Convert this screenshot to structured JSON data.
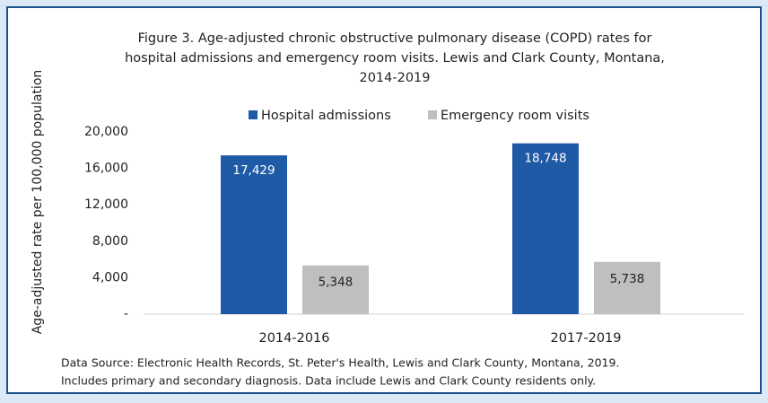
{
  "chart_data": {
    "type": "bar",
    "title": [
      "Figure 3. Age-adjusted chronic obstructive pulmonary disease (COPD) rates for",
      "hospital admissions and emergency room visits. Lewis and Clark County, Montana,",
      "2014-2019"
    ],
    "y_label": "Age-adjusted rate per 100,000 population",
    "categories": [
      "2014-2016",
      "2017-2019"
    ],
    "series": [
      {
        "name": "Hospital admissions",
        "color": "#1f5aa6",
        "values": [
          17429,
          18748
        ],
        "value_labels": [
          "17,429",
          "18,748"
        ]
      },
      {
        "name": "Emergency room visits",
        "color": "#bfbfbf",
        "values": [
          5348,
          5738
        ],
        "value_labels": [
          "5,348",
          "5,738"
        ]
      }
    ],
    "ylim": [
      0,
      20000
    ],
    "yticks": [
      {
        "value": 0,
        "label": "-"
      },
      {
        "value": 4000,
        "label": "4,000"
      },
      {
        "value": 8000,
        "label": "8,000"
      },
      {
        "value": 12000,
        "label": "12,000"
      },
      {
        "value": 16000,
        "label": "16,000"
      },
      {
        "value": 20000,
        "label": "20,000"
      }
    ],
    "legend": "top",
    "footnote": [
      "Data Source: Electronic Health Records, St. Peter's Health, Lewis and Clark County, Montana, 2019.",
      "Includes primary and secondary diagnosis. Data include Lewis and Clark County residents only."
    ]
  }
}
